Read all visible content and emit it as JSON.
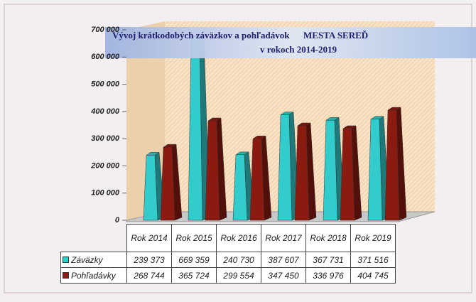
{
  "chart_data": {
    "type": "bar3d",
    "title": [
      "Vývoj krátkodobých záväzkov a pohľadávok      MESTA SEREĎ",
      "v rokoch 2014-2019"
    ],
    "categories": [
      "Rok 2014",
      "Rok 2015",
      "Rok 2016",
      "Rok 2017",
      "Rok 2018",
      "Rok 2019"
    ],
    "series": [
      {
        "name": "Záväzky",
        "color": "#33cccc",
        "values": [
          239373,
          669359,
          240730,
          387607,
          367731,
          371516
        ],
        "value_labels": [
          "239 373",
          "669 359",
          "240 730",
          "387 607",
          "367 731",
          "371 516"
        ]
      },
      {
        "name": "Pohľadávky",
        "color": "#8b1a10",
        "values": [
          268744,
          365724,
          299554,
          347450,
          336976,
          404745
        ],
        "value_labels": [
          "268 744",
          "365 724",
          "299 554",
          "347 450",
          "336 976",
          "404 745"
        ]
      }
    ],
    "ylim": [
      0,
      700000
    ],
    "yticks": [
      0,
      {
        "value": 100000,
        "label": "100 000"
      },
      {
        "value": 200000,
        "label": "200 000"
      },
      {
        "value": 300000,
        "label": "300 000"
      },
      {
        "value": 400000,
        "label": "400 000"
      },
      {
        "value": 500000,
        "label": "500 000"
      },
      {
        "value": 600000,
        "label": "600 000"
      },
      {
        "value": 700000,
        "label": "700 000"
      }
    ],
    "grid": false
  }
}
